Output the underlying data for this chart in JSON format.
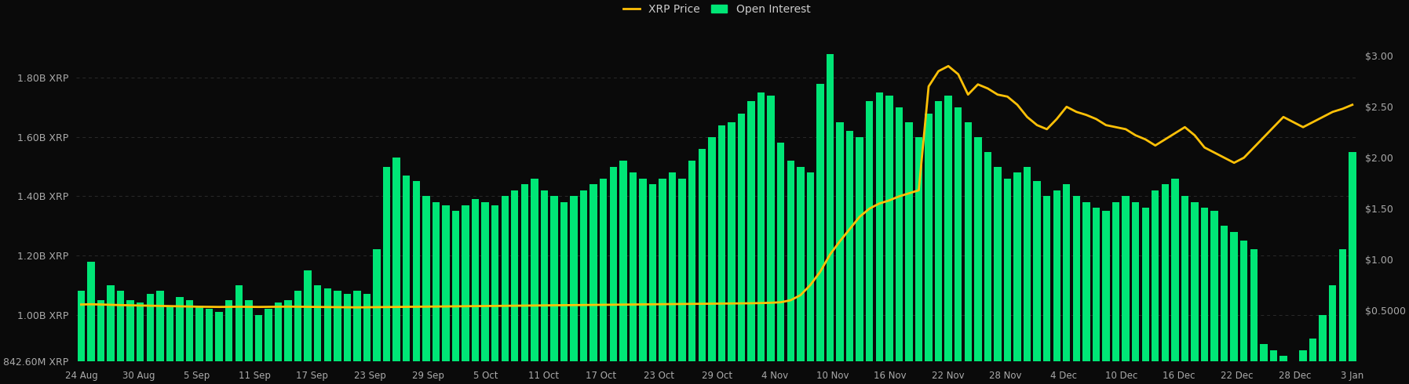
{
  "background_color": "#0a0a0a",
  "bar_color": "#00e676",
  "line_color": "#ffc107",
  "left_yticks_labels": [
    "842.60M XRP",
    "1.00B XRP",
    "1.20B XRP",
    "1.40B XRP",
    "1.60B XRP",
    "1.80B XRP"
  ],
  "left_yticks_values": [
    0.8426,
    1.0,
    1.2,
    1.4,
    1.6,
    1.8
  ],
  "right_yticks_labels": [
    "$0.5000",
    "$1.00",
    "$1.50",
    "$2.00",
    "$2.50",
    "$3.00"
  ],
  "right_yticks_values": [
    0.5,
    1.0,
    1.5,
    2.0,
    2.5,
    3.0
  ],
  "xtick_labels": [
    "24 Aug",
    "30 Aug",
    "5 Sep",
    "11 Sep",
    "17 Sep",
    "23 Sep",
    "29 Sep",
    "5 Oct",
    "11 Oct",
    "17 Oct",
    "23 Oct",
    "29 Oct",
    "4 Nov",
    "10 Nov",
    "16 Nov",
    "22 Nov",
    "28 Nov",
    "4 Dec",
    "10 Dec",
    "16 Dec",
    "22 Dec",
    "28 Dec",
    "3 Jan"
  ],
  "ylim_left": [
    0.8426,
    1.97
  ],
  "ylim_right": [
    0.0,
    3.28
  ],
  "bar_data": [
    1.08,
    1.18,
    1.05,
    1.1,
    1.08,
    1.05,
    1.04,
    1.07,
    1.08,
    1.03,
    1.06,
    1.05,
    1.03,
    1.02,
    1.01,
    1.05,
    1.1,
    1.05,
    1.0,
    1.02,
    1.04,
    1.05,
    1.08,
    1.15,
    1.1,
    1.09,
    1.08,
    1.07,
    1.08,
    1.07,
    1.22,
    1.5,
    1.53,
    1.47,
    1.45,
    1.4,
    1.38,
    1.37,
    1.35,
    1.37,
    1.39,
    1.38,
    1.37,
    1.4,
    1.42,
    1.44,
    1.46,
    1.42,
    1.4,
    1.38,
    1.4,
    1.42,
    1.44,
    1.46,
    1.5,
    1.52,
    1.48,
    1.46,
    1.44,
    1.46,
    1.48,
    1.46,
    1.52,
    1.56,
    1.6,
    1.64,
    1.65,
    1.68,
    1.72,
    1.75,
    1.74,
    1.58,
    1.52,
    1.5,
    1.48,
    1.78,
    1.88,
    1.65,
    1.62,
    1.6,
    1.72,
    1.75,
    1.74,
    1.7,
    1.65,
    1.6,
    1.68,
    1.72,
    1.74,
    1.7,
    1.65,
    1.6,
    1.55,
    1.5,
    1.46,
    1.48,
    1.5,
    1.45,
    1.4,
    1.42,
    1.44,
    1.4,
    1.38,
    1.36,
    1.35,
    1.38,
    1.4,
    1.38,
    1.36,
    1.42,
    1.44,
    1.46,
    1.4,
    1.38,
    1.36,
    1.35,
    1.3,
    1.28,
    1.25,
    1.22,
    0.9,
    0.88,
    0.86,
    0.84,
    0.88,
    0.92,
    1.0,
    1.1,
    1.22,
    1.55
  ],
  "price_data": [
    0.558,
    0.56,
    0.558,
    0.555,
    0.552,
    0.55,
    0.548,
    0.546,
    0.544,
    0.542,
    0.54,
    0.538,
    0.536,
    0.535,
    0.534,
    0.535,
    0.536,
    0.535,
    0.534,
    0.535,
    0.536,
    0.537,
    0.536,
    0.535,
    0.534,
    0.533,
    0.532,
    0.531,
    0.53,
    0.531,
    0.532,
    0.533,
    0.534,
    0.535,
    0.536,
    0.537,
    0.538,
    0.539,
    0.54,
    0.541,
    0.542,
    0.543,
    0.544,
    0.545,
    0.546,
    0.547,
    0.548,
    0.549,
    0.55,
    0.551,
    0.552,
    0.553,
    0.554,
    0.555,
    0.556,
    0.557,
    0.558,
    0.559,
    0.56,
    0.561,
    0.562,
    0.563,
    0.564,
    0.565,
    0.566,
    0.567,
    0.568,
    0.569,
    0.57,
    0.572,
    0.575,
    0.58,
    0.6,
    0.65,
    0.75,
    0.88,
    1.05,
    1.18,
    1.3,
    1.42,
    1.5,
    1.55,
    1.58,
    1.62,
    1.65,
    1.68,
    2.7,
    2.85,
    2.9,
    2.82,
    2.62,
    2.72,
    2.68,
    2.62,
    2.6,
    2.52,
    2.4,
    2.32,
    2.28,
    2.38,
    2.5,
    2.45,
    2.42,
    2.38,
    2.32,
    2.3,
    2.28,
    2.22,
    2.18,
    2.12,
    2.18,
    2.24,
    2.3,
    2.22,
    2.1,
    2.05,
    2.0,
    1.95,
    2.0,
    2.1,
    2.2,
    2.3,
    2.4,
    2.35,
    2.3,
    2.35,
    2.4,
    2.45,
    2.48,
    2.52
  ],
  "legend_xrp_price": "XRP Price",
  "legend_open_interest": "Open Interest"
}
